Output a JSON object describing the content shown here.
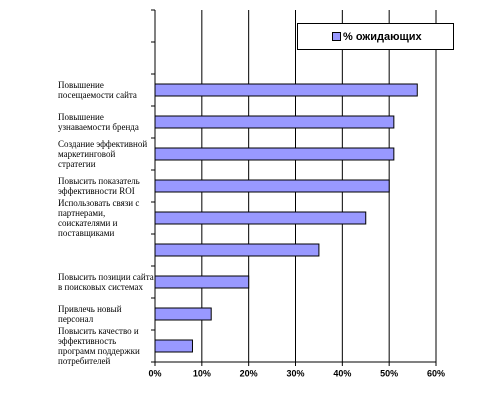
{
  "chart_data": {
    "type": "bar",
    "orientation": "horizontal",
    "categories": [
      null,
      null,
      "Повышение посещаемости сайта",
      "Повышение узнаваемости бренда",
      "Создание эффективной маркетинговой стратегии",
      "Повысить показатель эффективности ROI",
      "Использовать связи с партнерами, соискателями и поставщиками",
      null,
      "Повысить позиции сайта в поисковых системах",
      "Привлечь новый персонал",
      "Повысить качество и эффективность программ поддержки потребителей"
    ],
    "series": [
      {
        "name": "% ожидающих",
        "color": "#9999ff",
        "values": [
          null,
          null,
          56,
          51,
          51,
          50,
          45,
          35,
          20,
          12,
          8
        ]
      }
    ],
    "xlim": [
      0,
      60
    ],
    "xticks": [
      {
        "value": 0,
        "label": "0%"
      },
      {
        "value": 10,
        "label": "10%"
      },
      {
        "value": 20,
        "label": "20%"
      },
      {
        "value": 30,
        "label": "30%"
      },
      {
        "value": 40,
        "label": "40%"
      },
      {
        "value": 50,
        "label": "50%"
      },
      {
        "value": 60,
        "label": "60%"
      }
    ],
    "grid": true,
    "legend": "top-right"
  }
}
